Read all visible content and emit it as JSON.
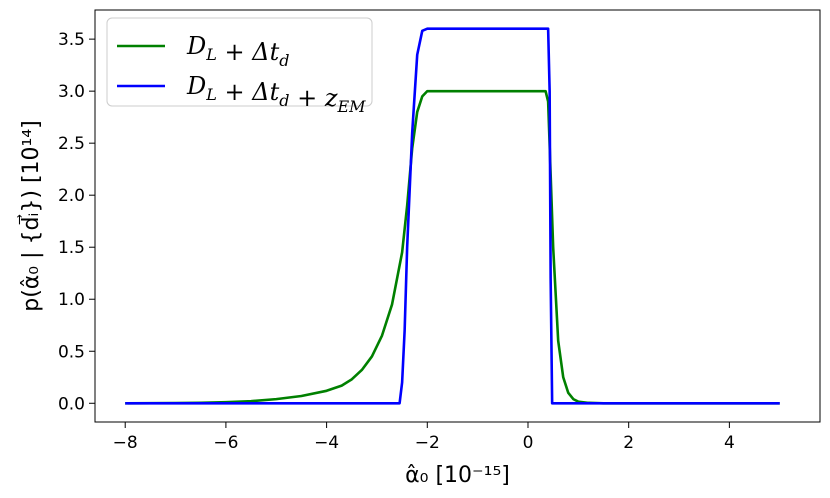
{
  "chart_data": {
    "type": "line",
    "xlabel": "α̂₀ [10⁻¹⁵]",
    "ylabel": "p(α̂₀ | {d⃗ᵢ}) [10¹⁴]",
    "xlim": [
      -8.6,
      5.8
    ],
    "ylim": [
      -0.18,
      3.78
    ],
    "x_ticks": [
      -8,
      -6,
      -4,
      -2,
      0,
      2,
      4
    ],
    "x_tick_labels": [
      "−8",
      "−6",
      "−4",
      "−2",
      "0",
      "2",
      "4"
    ],
    "y_ticks": [
      0.0,
      0.5,
      1.0,
      1.5,
      2.0,
      2.5,
      3.0,
      3.5
    ],
    "y_tick_labels": [
      "0.0",
      "0.5",
      "1.0",
      "1.5",
      "2.0",
      "2.5",
      "3.0",
      "3.5"
    ],
    "grid": false,
    "legend_placement": "top-left",
    "series": [
      {
        "name": "D_L + Δt_d",
        "color": "#008000",
        "x": [
          -8,
          -7,
          -6.5,
          -6,
          -5.5,
          -5,
          -4.5,
          -4,
          -3.7,
          -3.5,
          -3.3,
          -3.1,
          -2.9,
          -2.7,
          -2.5,
          -2.4,
          -2.3,
          -2.2,
          -2.1,
          -2.0,
          -1.9,
          0.0,
          0.35,
          0.4,
          0.5,
          0.6,
          0.7,
          0.8,
          0.9,
          1.0,
          1.2,
          1.5,
          2.0,
          3.0,
          4.0,
          5.0
        ],
        "y": [
          0.0,
          0.002,
          0.005,
          0.01,
          0.02,
          0.04,
          0.07,
          0.12,
          0.17,
          0.23,
          0.32,
          0.45,
          0.65,
          0.95,
          1.45,
          1.9,
          2.45,
          2.8,
          2.95,
          3.0,
          3.0,
          3.0,
          3.0,
          2.9,
          1.5,
          0.6,
          0.25,
          0.1,
          0.04,
          0.015,
          0.004,
          0.0,
          0.0,
          0.0,
          0.0,
          0.0
        ]
      },
      {
        "name": "D_L + Δt_d + z_EM",
        "color": "#0000ff",
        "x": [
          -8,
          -2.55,
          -2.5,
          -2.45,
          -2.4,
          -2.3,
          -2.2,
          -2.1,
          -2.0,
          -1.9,
          0.0,
          0.4,
          0.43,
          0.45,
          0.48,
          0.5,
          1.0,
          2.0,
          3.0,
          4.0,
          5.0
        ],
        "y": [
          0.0,
          0.0,
          0.2,
          0.7,
          1.5,
          2.6,
          3.35,
          3.58,
          3.6,
          3.6,
          3.6,
          3.6,
          3.0,
          1.2,
          0.0,
          0.0,
          0.0,
          0.0,
          0.0,
          0.0,
          0.0
        ]
      }
    ],
    "legend": {
      "entries": [
        {
          "main": "D",
          "sub": "L",
          "rest": " + Δt",
          "sub2": "d",
          "tail": ""
        },
        {
          "main": "D",
          "sub": "L",
          "rest": " + Δt",
          "sub2": "d",
          "tail": " + z",
          "sub3": "EM"
        }
      ]
    }
  }
}
